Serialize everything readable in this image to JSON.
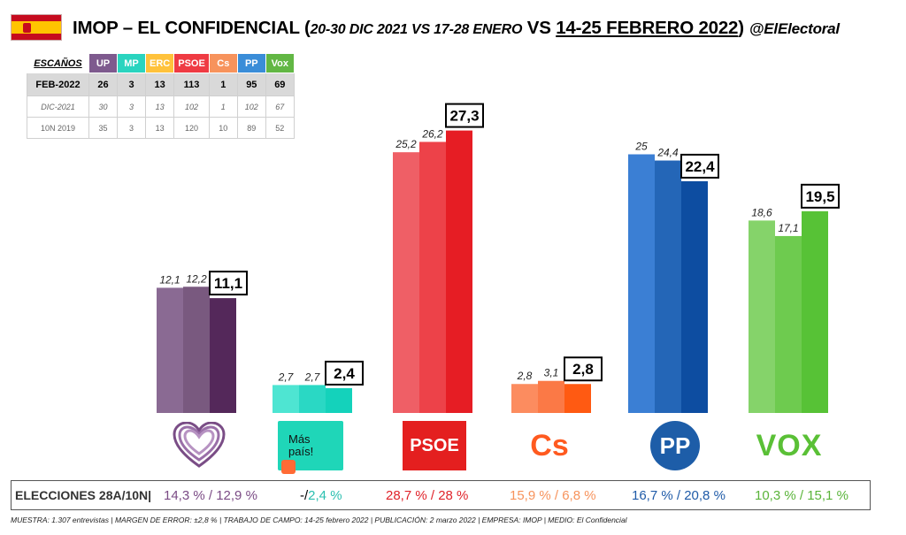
{
  "header": {
    "title_main": "IMOP – EL CONFIDENCIAL (",
    "title_range1": "20-30 DIC 2021 VS 17-28 ENERO",
    "title_vs": " VS ",
    "title_range2": "14-25 FEBRERO 2022",
    "title_close": ")",
    "handle": "@ElElectoral",
    "flag_icon": "spain-flag-icon"
  },
  "seats_table": {
    "label": "ESCAÑOS",
    "parties": [
      {
        "name": "UP",
        "color": "#7e5a8e"
      },
      {
        "name": "MP",
        "color": "#2ad4bf"
      },
      {
        "name": "ERC",
        "color": "#ffc23b"
      },
      {
        "name": "PSOE",
        "color": "#ef3b43"
      },
      {
        "name": "Cs",
        "color": "#f7935c"
      },
      {
        "name": "PP",
        "color": "#3a8dd8"
      },
      {
        "name": "Vox",
        "color": "#62b744"
      }
    ],
    "rows": [
      {
        "label": "FEB-2022",
        "values": [
          "26",
          "3",
          "13",
          "113",
          "1",
          "95",
          "69"
        ]
      },
      {
        "label": "DIC-2021",
        "values": [
          "30",
          "3",
          "13",
          "102",
          "1",
          "102",
          "67"
        ]
      },
      {
        "label": "10N 2019",
        "values": [
          "35",
          "3",
          "13",
          "120",
          "10",
          "89",
          "52"
        ]
      }
    ]
  },
  "chart_data": {
    "type": "bar",
    "categories": [
      "UP",
      "Más País",
      "PSOE",
      "Cs",
      "PP",
      "VOX"
    ],
    "series": [],
    "values": [
      [
        12.1,
        12.2,
        11.1
      ],
      [
        2.7,
        2.7,
        2.4
      ],
      [
        25.2,
        26.2,
        27.3
      ],
      [
        2.8,
        3.1,
        2.8
      ],
      [
        25,
        24.4,
        22.4
      ],
      [
        18.6,
        17.1,
        19.5
      ]
    ],
    "labels": [
      [
        "12,1",
        "12,2",
        "11,1"
      ],
      [
        "2,7",
        "2,7",
        "2,4"
      ],
      [
        "25,2",
        "26,2",
        "27,3"
      ],
      [
        "2,8",
        "3,1",
        "2,8"
      ],
      [
        "25",
        "24,4",
        "22,4"
      ],
      [
        "18,6",
        "17,1",
        "19,5"
      ]
    ],
    "colors": [
      [
        "#8a6a93",
        "#79597f",
        "#54285a"
      ],
      [
        "#4ee5d2",
        "#2ad8c4",
        "#14d2bb"
      ],
      [
        "#ef5f66",
        "#ed4249",
        "#e61d24"
      ],
      [
        "#fc8c5f",
        "#fb7946",
        "#ff5a12"
      ],
      [
        "#3b7fd4",
        "#2466b7",
        "#0d4da1"
      ],
      [
        "#85d36a",
        "#6ecb4f",
        "#57c236"
      ]
    ],
    "ylim": [
      0,
      30
    ],
    "grid": false,
    "title": "",
    "xlabel": "",
    "ylabel": ""
  },
  "logos": {
    "up": "up-heart-logo-icon",
    "mp_line1": "Más",
    "mp_line2": "país!",
    "psoe": "PSOE",
    "cs": "Cs",
    "pp": "PP",
    "vox": "VOX"
  },
  "elections": {
    "label": "ELECCIONES 28A/10N",
    "sep": "|",
    "cells": [
      {
        "text": "14,3 % / 12,9 %",
        "color": "#7b4b85"
      },
      {
        "prefix": "-/",
        "text": "2,4 %",
        "color": "#2bbfb0"
      },
      {
        "text": "28,7  % / 28 %",
        "color": "#e0232a"
      },
      {
        "text": "15,9 % / 6,8 %",
        "color": "#f7935c"
      },
      {
        "text": "16,7 % / 20,8 %",
        "color": "#1f5ba8"
      },
      {
        "text": "10,3 % / 15,1 %",
        "color": "#5ab43a"
      }
    ]
  },
  "footer": {
    "text": "MUESTRA: 1.307 entrevistas | MARGEN DE ERROR: ±2,8 % | TRABAJO DE CAMPO: 14-25 febrero 2022  | PUBLICACIÓN: 2 marzo 2022 | EMPRESA: IMOP | MEDIO: El Confidencial"
  }
}
